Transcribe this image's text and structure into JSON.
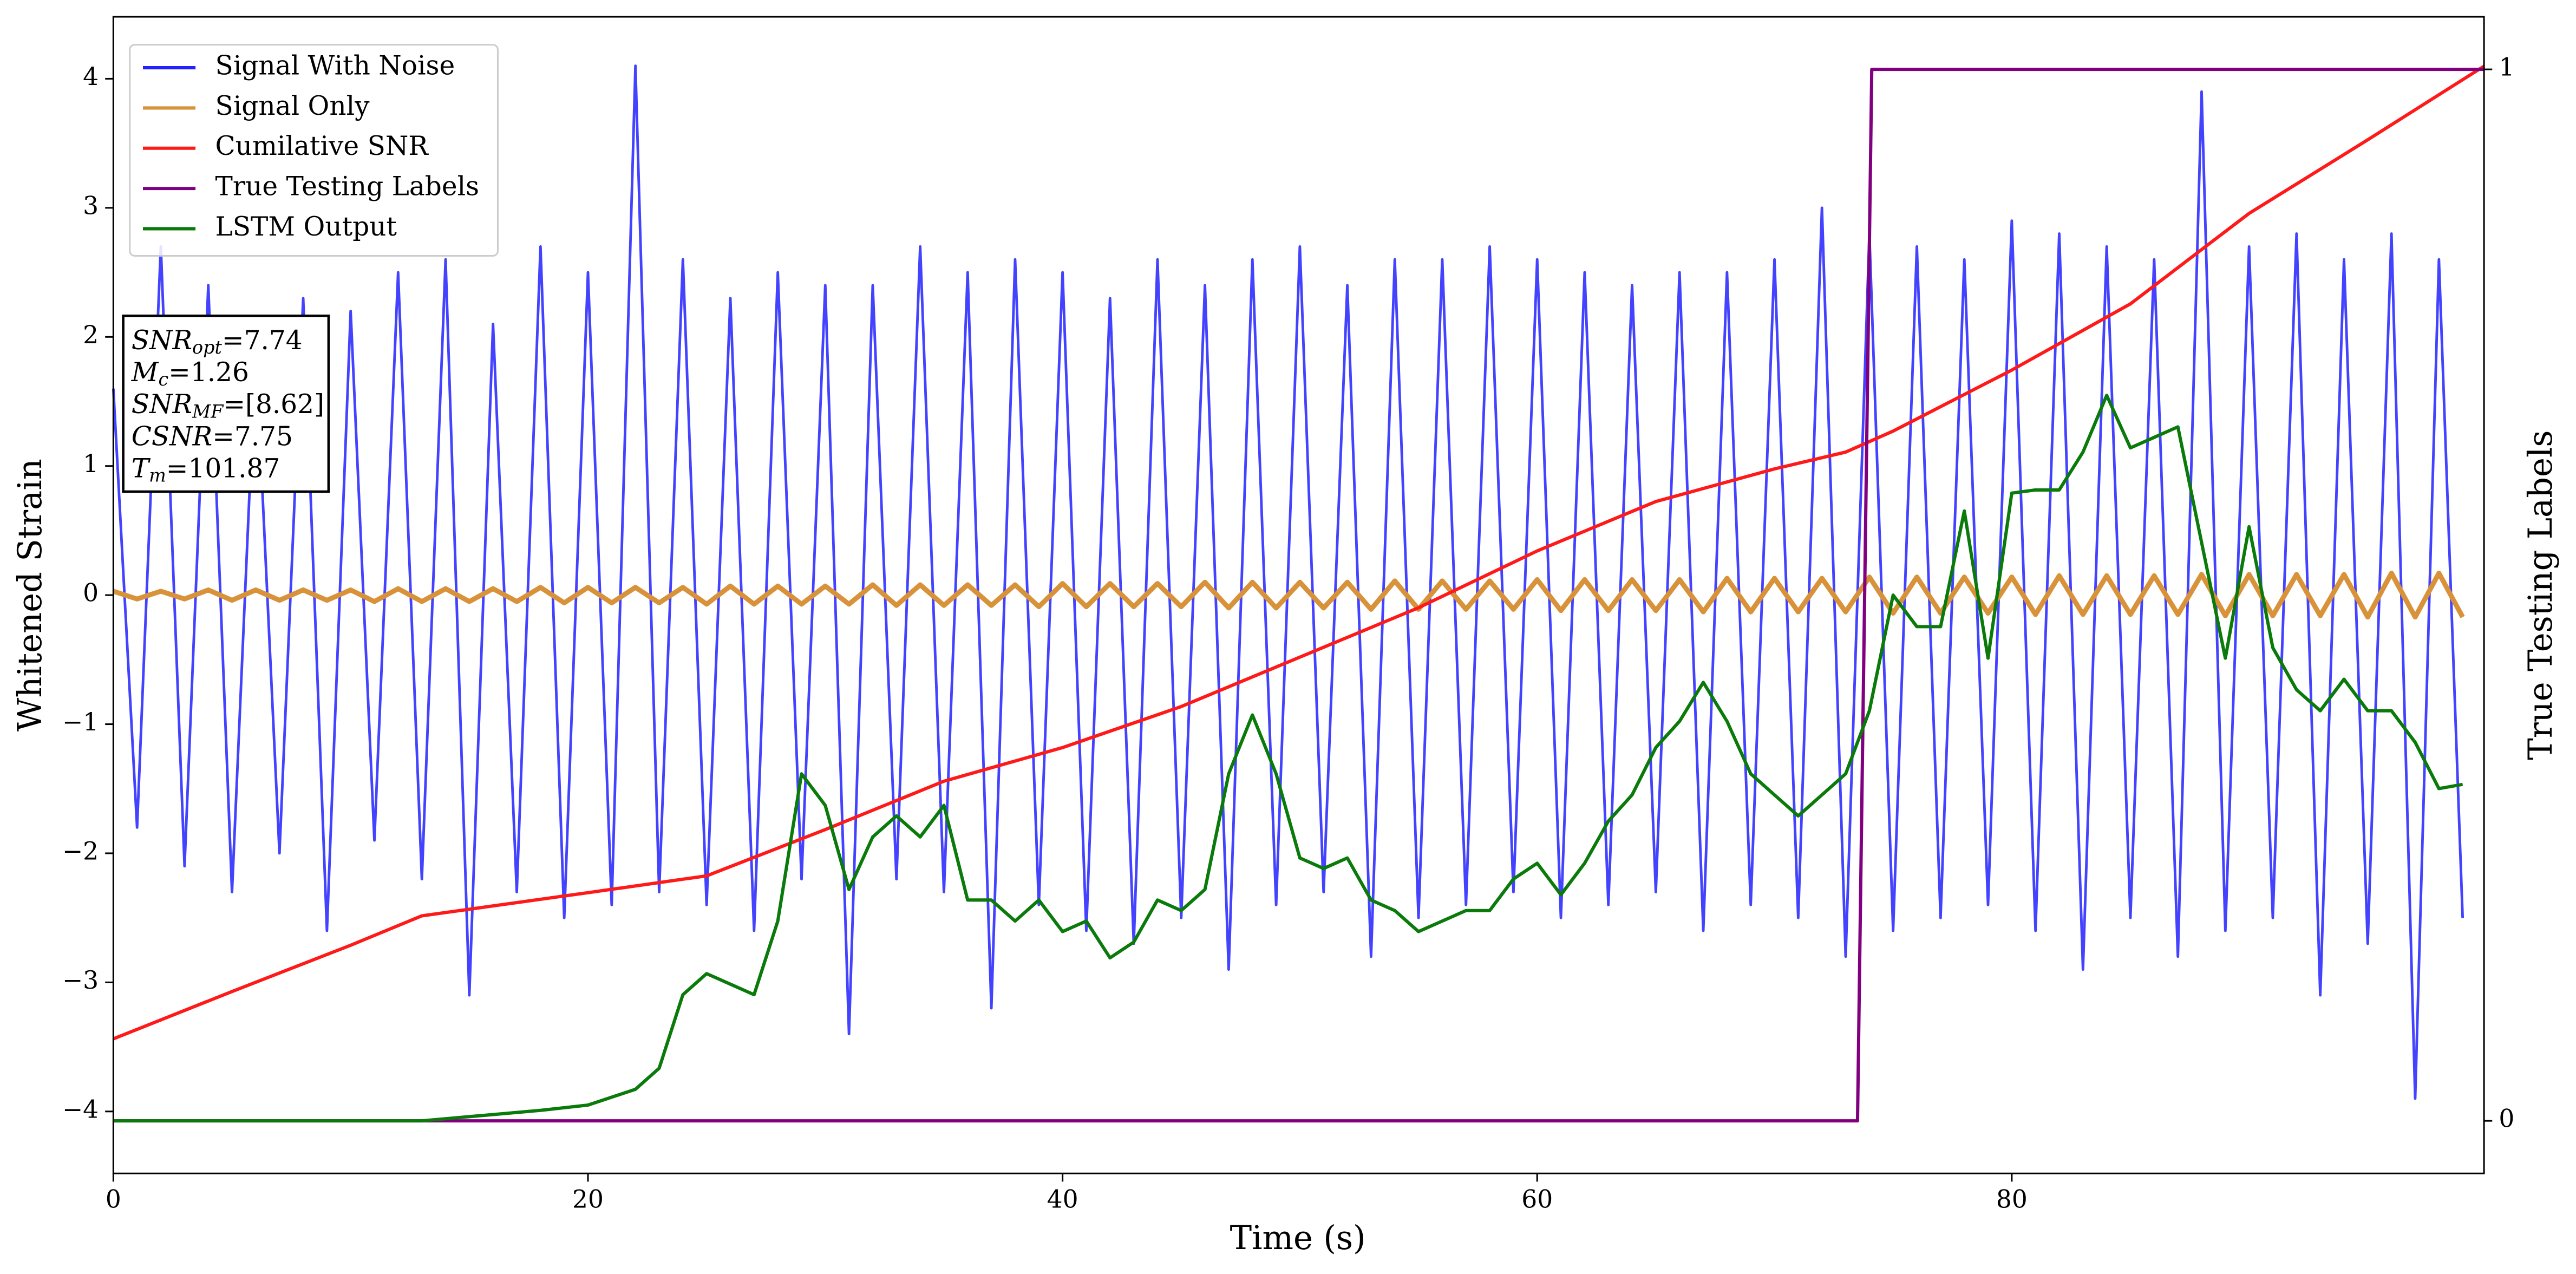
{
  "chart_data": {
    "type": "line",
    "xlabel": "Time (s)",
    "ylabel": "Whitened Strain",
    "y2label": "True Testing Labels",
    "xlim": [
      0,
      99.9
    ],
    "xticks": [
      0,
      20,
      40,
      60,
      80
    ],
    "ylim": [
      -4.48,
      4.48
    ],
    "yticks": [
      {
        "value": -4,
        "label": "−4"
      },
      {
        "value": -3,
        "label": "−3"
      },
      {
        "value": -2,
        "label": "−2"
      },
      {
        "value": -1,
        "label": "−1"
      },
      0,
      1,
      2,
      3,
      4
    ],
    "y2lim": [
      -0.05,
      1.05
    ],
    "y2ticks": [
      0,
      1
    ],
    "legend": "upper left",
    "series": [
      {
        "name": "Signal With Noise",
        "color": "#2222ff",
        "x": [
          0,
          1,
          2,
          3,
          4,
          5,
          6,
          7,
          8,
          9,
          10,
          11,
          12,
          13,
          14,
          15,
          16,
          17,
          18,
          19,
          20,
          21,
          22,
          23,
          24,
          25,
          26,
          27,
          28,
          29,
          30,
          31,
          32,
          33,
          34,
          35,
          36,
          37,
          38,
          39,
          40,
          41,
          42,
          43,
          44,
          45,
          46,
          47,
          48,
          49,
          50,
          51,
          52,
          53,
          54,
          55,
          56,
          57,
          58,
          59,
          60,
          61,
          62,
          63,
          64,
          65,
          66,
          67,
          68,
          69,
          70,
          71,
          72,
          73,
          74,
          75,
          76,
          77,
          78,
          79,
          80,
          81,
          82,
          83,
          84,
          85,
          86,
          87,
          88,
          89,
          90,
          91,
          92,
          93,
          94,
          95,
          96,
          97,
          98,
          99
        ],
        "values": [
          1.6,
          -1.8,
          2.7,
          -2.1,
          2.4,
          -2.3,
          1.9,
          -2.0,
          2.3,
          -2.6,
          2.2,
          -1.9,
          2.5,
          -2.2,
          2.6,
          -3.1,
          2.1,
          -2.3,
          2.7,
          -2.5,
          2.5,
          -2.4,
          4.1,
          -2.3,
          2.6,
          -2.4,
          2.3,
          -2.6,
          2.5,
          -2.2,
          2.4,
          -3.4,
          2.4,
          -2.2,
          2.7,
          -2.3,
          2.5,
          -3.2,
          2.6,
          -2.4,
          2.5,
          -2.6,
          2.3,
          -2.7,
          2.6,
          -2.5,
          2.4,
          -2.9,
          2.6,
          -2.4,
          2.7,
          -2.3,
          2.4,
          -2.8,
          2.6,
          -2.5,
          2.6,
          -2.4,
          2.7,
          -2.3,
          2.6,
          -2.5,
          2.5,
          -2.4,
          2.4,
          -2.3,
          2.5,
          -2.6,
          2.5,
          -2.4,
          2.6,
          -2.5,
          3.0,
          -2.8,
          2.8,
          -2.6,
          2.7,
          -2.5,
          2.6,
          -2.4,
          2.9,
          -2.6,
          2.8,
          -2.9,
          2.7,
          -2.5,
          2.6,
          -2.8,
          3.9,
          -2.6,
          2.7,
          -2.5,
          2.8,
          -3.1,
          2.6,
          -2.7,
          2.8,
          -3.9,
          2.6,
          -2.5
        ]
      },
      {
        "name": "Signal Only",
        "color": "#d8923a",
        "x": [
          0,
          1,
          2,
          3,
          4,
          5,
          6,
          7,
          8,
          9,
          10,
          11,
          12,
          13,
          14,
          15,
          16,
          17,
          18,
          19,
          20,
          21,
          22,
          23,
          24,
          25,
          26,
          27,
          28,
          29,
          30,
          31,
          32,
          33,
          34,
          35,
          36,
          37,
          38,
          39,
          40,
          41,
          42,
          43,
          44,
          45,
          46,
          47,
          48,
          49,
          50,
          51,
          52,
          53,
          54,
          55,
          56,
          57,
          58,
          59,
          60,
          61,
          62,
          63,
          64,
          65,
          66,
          67,
          68,
          69,
          70,
          71,
          72,
          73,
          74,
          75,
          76,
          77,
          78,
          79,
          80,
          81,
          82,
          83,
          84,
          85,
          86,
          87,
          88,
          89,
          90,
          91,
          92,
          93,
          94,
          95,
          96,
          97,
          98,
          99
        ],
        "values": [
          0.03,
          -0.03,
          0.03,
          -0.03,
          0.04,
          -0.04,
          0.04,
          -0.04,
          0.04,
          -0.04,
          0.04,
          -0.05,
          0.05,
          -0.05,
          0.05,
          -0.05,
          0.05,
          -0.05,
          0.06,
          -0.06,
          0.06,
          -0.06,
          0.06,
          -0.06,
          0.06,
          -0.07,
          0.07,
          -0.07,
          0.07,
          -0.07,
          0.07,
          -0.07,
          0.08,
          -0.08,
          0.08,
          -0.08,
          0.08,
          -0.08,
          0.08,
          -0.09,
          0.09,
          -0.09,
          0.09,
          -0.09,
          0.09,
          -0.09,
          0.1,
          -0.1,
          0.1,
          -0.1,
          0.1,
          -0.1,
          0.1,
          -0.11,
          0.11,
          -0.11,
          0.11,
          -0.11,
          0.11,
          -0.11,
          0.12,
          -0.12,
          0.12,
          -0.12,
          0.12,
          -0.12,
          0.12,
          -0.13,
          0.13,
          -0.13,
          0.13,
          -0.13,
          0.13,
          -0.13,
          0.14,
          -0.14,
          0.14,
          -0.14,
          0.14,
          -0.14,
          0.14,
          -0.15,
          0.15,
          -0.15,
          0.15,
          -0.15,
          0.15,
          -0.15,
          0.16,
          -0.16,
          0.16,
          -0.16,
          0.16,
          -0.16,
          0.16,
          -0.17,
          0.17,
          -0.17,
          0.17,
          -0.17
        ]
      },
      {
        "name": "Cumilative SNR",
        "color": "#ff1a1a",
        "axis": "y2",
        "x": [
          0,
          5,
          10,
          13,
          20,
          25,
          30,
          35,
          40,
          45,
          50,
          55,
          60,
          65,
          70,
          73,
          75,
          80,
          85,
          90,
          95,
          99.9
        ],
        "values": [
          0.078,
          0.123,
          0.167,
          0.195,
          0.217,
          0.233,
          0.277,
          0.323,
          0.355,
          0.394,
          0.441,
          0.488,
          0.542,
          0.589,
          0.62,
          0.636,
          0.656,
          0.714,
          0.777,
          0.863,
          0.933,
          1.003
        ]
      },
      {
        "name": "True Testing Labels",
        "color": "#800080",
        "axis": "y2",
        "x": [
          0,
          73.5,
          74.1,
          99.9
        ],
        "values": [
          0,
          0,
          1,
          1
        ]
      },
      {
        "name": "LSTM Output",
        "color": "#0a7a0a",
        "axis": "y2",
        "x": [
          0,
          13,
          18,
          20,
          22,
          23,
          24,
          25,
          26,
          27,
          28,
          29,
          30,
          31,
          32,
          33,
          34,
          35,
          36,
          37,
          38,
          39,
          40,
          41,
          42,
          43,
          44,
          45,
          46,
          47,
          48,
          49,
          50,
          51,
          52,
          53,
          54,
          55,
          56,
          57,
          58,
          59,
          60,
          61,
          62,
          63,
          64,
          65,
          66,
          67,
          68,
          69,
          70,
          71,
          72,
          73,
          74,
          75,
          76,
          77,
          78,
          79,
          80,
          81,
          82,
          83,
          84,
          85,
          86,
          87,
          88,
          89,
          90,
          91,
          92,
          93,
          94,
          95,
          96,
          97,
          98,
          99
        ],
        "values": [
          0,
          0,
          0.01,
          0.015,
          0.03,
          0.05,
          0.12,
          0.14,
          0.13,
          0.12,
          0.19,
          0.33,
          0.3,
          0.22,
          0.27,
          0.29,
          0.27,
          0.3,
          0.21,
          0.21,
          0.19,
          0.21,
          0.18,
          0.19,
          0.155,
          0.17,
          0.21,
          0.2,
          0.22,
          0.33,
          0.386,
          0.33,
          0.25,
          0.24,
          0.25,
          0.21,
          0.2,
          0.18,
          0.19,
          0.2,
          0.2,
          0.23,
          0.245,
          0.215,
          0.245,
          0.285,
          0.31,
          0.355,
          0.38,
          0.417,
          0.38,
          0.33,
          0.31,
          0.29,
          0.31,
          0.33,
          0.39,
          0.5,
          0.47,
          0.47,
          0.58,
          0.44,
          0.597,
          0.6,
          0.6,
          0.636,
          0.69,
          0.64,
          0.65,
          0.66,
          0.55,
          0.44,
          0.565,
          0.45,
          0.41,
          0.39,
          0.42,
          0.39,
          0.39,
          0.36,
          0.316,
          0.32
        ]
      }
    ],
    "annotation": [
      {
        "label": "SNR",
        "sub": "opt",
        "text": "=7.74"
      },
      {
        "label": "M",
        "sub": "c",
        "text": "=1.26"
      },
      {
        "label": "SNR",
        "sub": "MF",
        "text": "=[8.62]"
      },
      {
        "label": "CSNR",
        "text": "=7.75"
      },
      {
        "label": "T",
        "sub": "m",
        "text": "=101.87"
      }
    ]
  }
}
